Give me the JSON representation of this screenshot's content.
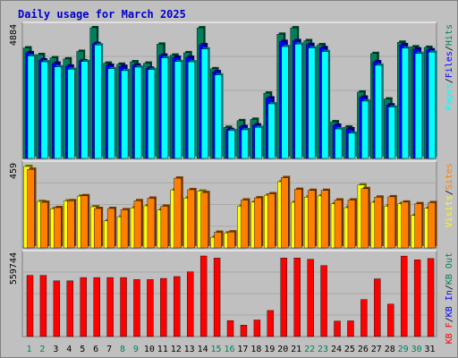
{
  "chart_data": [
    {
      "type": "bar",
      "title": "Daily usage for March 2025",
      "panel": "pages-files-hits",
      "ymax_label": "4884",
      "legend": [
        "Pages",
        "/",
        "Files",
        "/",
        "Hits"
      ],
      "categories": [
        "1",
        "2",
        "3",
        "4",
        "5",
        "6",
        "7",
        "8",
        "9",
        "10",
        "11",
        "12",
        "13",
        "14",
        "15",
        "16",
        "17",
        "18",
        "19",
        "20",
        "21",
        "22",
        "23",
        "24",
        "25",
        "26",
        "27",
        "28",
        "29",
        "30",
        "31"
      ],
      "weekend_days": [
        1,
        2,
        8,
        9,
        15,
        16,
        22,
        23,
        29,
        30
      ],
      "series": [
        {
          "name": "Hits",
          "color": "#00805c",
          "values": [
            4130,
            3880,
            3760,
            3720,
            4000,
            4884,
            3560,
            3520,
            3610,
            3560,
            4270,
            3860,
            3950,
            4880,
            3350,
            1160,
            1410,
            1460,
            2440,
            4640,
            4880,
            4400,
            4250,
            1370,
            1170,
            2480,
            3920,
            2220,
            4340,
            4170,
            4150
          ]
        },
        {
          "name": "Files",
          "color": "#0000ff",
          "values": [
            3950,
            3680,
            3560,
            3450,
            3650,
            4290,
            3480,
            3440,
            3490,
            3370,
            3860,
            3780,
            3780,
            4250,
            3240,
            1080,
            1190,
            1250,
            2260,
            4370,
            4400,
            4260,
            4140,
            1240,
            1110,
            2290,
            3610,
            2000,
            4250,
            4090,
            4060
          ]
        },
        {
          "name": "Pages",
          "color": "#00ffff",
          "values": [
            3830,
            3610,
            3420,
            3330,
            3620,
            4240,
            3350,
            3280,
            3410,
            3320,
            3760,
            3620,
            3610,
            4090,
            3120,
            1040,
            1070,
            1160,
            2040,
            4180,
            4270,
            4130,
            3990,
            1100,
            940,
            2140,
            3480,
            1920,
            4120,
            3920,
            3970
          ]
        }
      ]
    },
    {
      "type": "bar",
      "panel": "visits-sites",
      "ymax_label": "459",
      "legend": [
        "Visits",
        "/",
        "Sites"
      ],
      "series": [
        {
          "name": "Visits",
          "color": "#ffff00",
          "values": [
            459,
            262,
            221,
            265,
            292,
            232,
            152,
            175,
            226,
            237,
            213,
            326,
            281,
            320,
            60,
            85,
            235,
            258,
            297,
            373,
            257,
            286,
            293,
            249,
            227,
            355,
            257,
            236,
            249,
            183,
            223
          ]
        },
        {
          "name": "Sites",
          "color": "#ff8000",
          "values": [
            443,
            257,
            227,
            266,
            294,
            222,
            222,
            215,
            266,
            280,
            235,
            393,
            328,
            312,
            88,
            90,
            270,
            282,
            305,
            396,
            330,
            324,
            324,
            270,
            270,
            334,
            286,
            288,
            258,
            249,
            255
          ]
        }
      ]
    },
    {
      "type": "bar",
      "panel": "traffic",
      "ymax_label": "559744",
      "legend": [
        "KB F",
        "/",
        "KB In",
        "/",
        "KB Out"
      ],
      "series": [
        {
          "name": "KB F",
          "color": "#ff0000",
          "values": [
            425000,
            425000,
            387000,
            387000,
            410000,
            410000,
            410000,
            410000,
            396000,
            396000,
            404000,
            417000,
            450000,
            559744,
            545000,
            111000,
            79000,
            115000,
            181000,
            546000,
            546000,
            537000,
            493000,
            107000,
            109000,
            257000,
            401000,
            225000,
            559000,
            533000,
            542000
          ]
        }
      ]
    }
  ]
}
